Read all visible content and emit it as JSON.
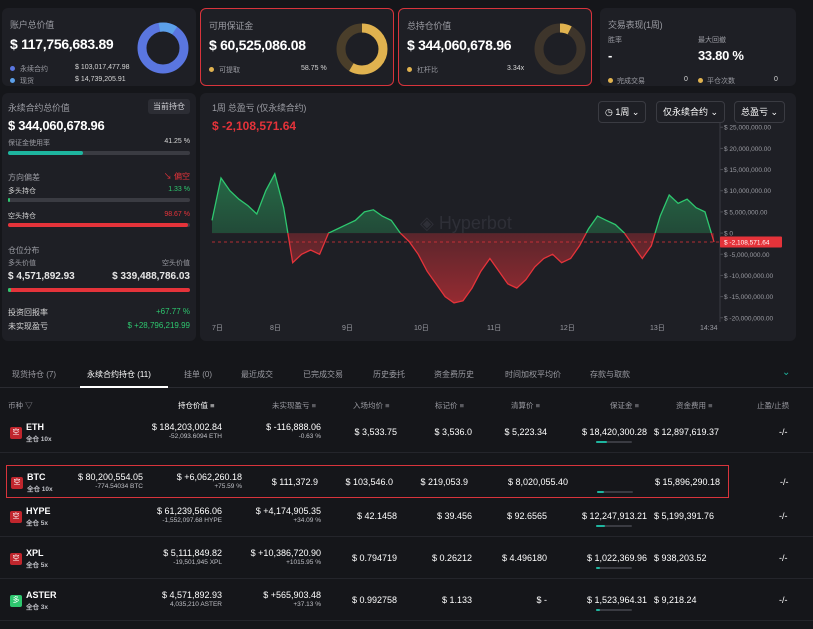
{
  "account": {
    "title": "账户总价值",
    "value": "$ 117,756,683.89",
    "rows": [
      {
        "label": "永续合约",
        "value": "$ 103,017,477.98"
      },
      {
        "label": "现货",
        "value": "$ 14,739,205.91"
      }
    ]
  },
  "available_margin": {
    "title": "可用保证金",
    "value": "$ 60,525,086.08",
    "sub_label": "可提取",
    "sub_value": "58.75 %"
  },
  "position_value": {
    "title": "总持仓价值",
    "value": "$ 344,060,678.96",
    "sub_label": "杠杆比",
    "sub_value": "3.34x"
  },
  "trade_perf": {
    "title": "交易表现(1周)",
    "win_label": "胜率",
    "win_value": "-",
    "drawdown_label": "最大回撤",
    "drawdown_value": "33.80 %",
    "done_label": "完成交易",
    "done_value": "0",
    "flat_label": "平仓次数",
    "flat_value": "0"
  },
  "perp": {
    "title": "永续合约总价值",
    "badge": "当前持仓",
    "value": "$ 344,060,678.96",
    "margin_label": "保证金使用率",
    "margin_value": "41.25 %",
    "margin_pct": 41.25,
    "direction_label": "方向偏差",
    "direction_value": "偏空",
    "long_label": "多头持仓",
    "long_pct_text": "1.33 %",
    "long_pct": 1.33,
    "short_label": "空头持仓",
    "short_pct_text": "98.67 %",
    "short_pct": 98.67,
    "dist_label": "仓位分布",
    "long_value_label": "多头价值",
    "long_value": "$ 4,571,892.93",
    "short_value_label": "空头价值",
    "short_value": "$ 339,488,786.03",
    "roi_label": "投资回报率",
    "roi_value": "+67.77 %",
    "upnl_label": "未实现盈亏",
    "upnl_value": "$ +28,796,219.99"
  },
  "chart_header": {
    "title": "1周 总盈亏 (仅永续合约)",
    "value": "$ -2,108,571.64",
    "dd_period": "1周",
    "dd_type": "仅永续合约",
    "dd_metric": "总盈亏",
    "watermark": "Hyperbot"
  },
  "chart_data": {
    "type": "area",
    "x_labels": [
      "7日",
      "8日",
      "9日",
      "10日",
      "11日",
      "12日",
      "13日",
      "14:34"
    ],
    "y_ticks": [
      "$ 25,000,000.00",
      "$ 20,000,000.00",
      "$ 15,000,000.00",
      "$ 10,000,000.00",
      "$ 5,000,000.00",
      "$ 0",
      "$ -5,000,000.00",
      "$ -10,000,000.00",
      "$ -15,000,000.00",
      "$ -20,000,000.00"
    ],
    "ylim": [
      -21000000,
      26000000
    ],
    "current_label": "$ -2,108,571.64",
    "current": -2108571.64,
    "values": [
      3000000,
      13000000,
      10000000,
      8000000,
      6500000,
      4500000,
      10000000,
      14000000,
      6000000,
      -7000000,
      -5000000,
      -4000000,
      -5000000,
      0,
      1000000,
      2000000,
      3000000,
      5000000,
      5500000,
      4000000,
      3000000,
      0,
      -2000000,
      -5000000,
      -9000000,
      -12000000,
      -15000000,
      -16500000,
      -16000000,
      -13000000,
      -9000000,
      -6000000,
      -9000000,
      -12000000,
      -13000000,
      -11000000,
      -8000000,
      -6000000,
      -5000000,
      -7000000,
      -6000000,
      -3000000,
      1000000,
      4000000,
      3000000,
      2000000,
      0,
      -3000000,
      -6000000,
      -3000000,
      4000000,
      9000000,
      7000000,
      8000000,
      6000000,
      5000000,
      -2108571.64
    ]
  },
  "tabs": [
    "现货持仓 (7)",
    "永续合约持仓 (11)",
    "挂单 (0)",
    "最近成交",
    "已完成交易",
    "历史委托",
    "资金费历史",
    "时间加权平均价",
    "存款与取款"
  ],
  "headers": [
    "币种",
    "持仓价值",
    "未实现盈亏",
    "入场均价",
    "标记价",
    "清算价",
    "保证金",
    "资金费用",
    "止盈/止损"
  ],
  "positions": [
    {
      "side": "空",
      "coin": "ETH",
      "mode": "全仓 10x",
      "value": "$ 184,203,002.84",
      "qty": "-52,093.6094 ETH",
      "pnl": "$ -116,888.06",
      "pnl_pct": "-0.63 %",
      "pos": false,
      "entry": "$ 3,533.75",
      "mark": "$ 3,536.0",
      "liq": "$ 5,223.34",
      "margin": "$ 18,420,300.28",
      "margin_pct": 30,
      "funding": "$ 12,897,619.37",
      "tpsl": "-/-"
    },
    {
      "side": "空",
      "coin": "BTC",
      "mode": "全仓 10x",
      "value": "$ 80,200,554.05",
      "qty": "-774.54034 BTC",
      "pnl": "$ +6,062,260.18",
      "pnl_pct": "+75.59 %",
      "pos": true,
      "entry": "$ 111,372.9",
      "mark": "$ 103,546.0",
      "liq": "$ 219,053.9",
      "margin": "$ 8,020,055.40",
      "margin_pct": 20,
      "funding": "$ 15,896,290.18",
      "tpsl": "-/-"
    },
    {
      "side": "空",
      "coin": "HYPE",
      "mode": "全仓 5x",
      "value": "$ 61,239,566.06",
      "qty": "-1,552,097.68 HYPE",
      "pnl": "$ +4,174,905.35",
      "pnl_pct": "+34.09 %",
      "pos": true,
      "entry": "$ 42.1458",
      "mark": "$ 39.456",
      "liq": "$ 92.6565",
      "margin": "$ 12,247,913.21",
      "margin_pct": 25,
      "funding": "$ 5,199,391.76",
      "tpsl": "-/-"
    },
    {
      "side": "空",
      "coin": "XPL",
      "mode": "全仓 5x",
      "value": "$ 5,111,849.82",
      "qty": "-19,501,945 XPL",
      "pnl": "$ +10,386,720.90",
      "pnl_pct": "+1015.95 %",
      "pos": true,
      "entry": "$ 0.794719",
      "mark": "$ 0.26212",
      "liq": "$ 4.496180",
      "margin": "$ 1,022,369.96",
      "margin_pct": 10,
      "funding": "$ 938,203.52",
      "tpsl": "-/-"
    },
    {
      "side": "多",
      "coin": "ASTER",
      "mode": "全仓 3x",
      "value": "$ 4,571,892.93",
      "qty": "4,035,210 ASTER",
      "pnl": "$ +565,903.48",
      "pnl_pct": "+37.13 %",
      "pos": true,
      "entry": "$ 0.992758",
      "mark": "$ 1.133",
      "liq": "$ -",
      "margin": "$ 1,523,964.31",
      "margin_pct": 10,
      "funding": "$ 9,218.24",
      "tpsl": "-/-"
    }
  ],
  "colors": {
    "green": "#2ec76f",
    "red": "#e5333a",
    "accent": "#1eb59f",
    "donut_blue": "#5a76e0",
    "donut_gold": "#e0b24f"
  }
}
